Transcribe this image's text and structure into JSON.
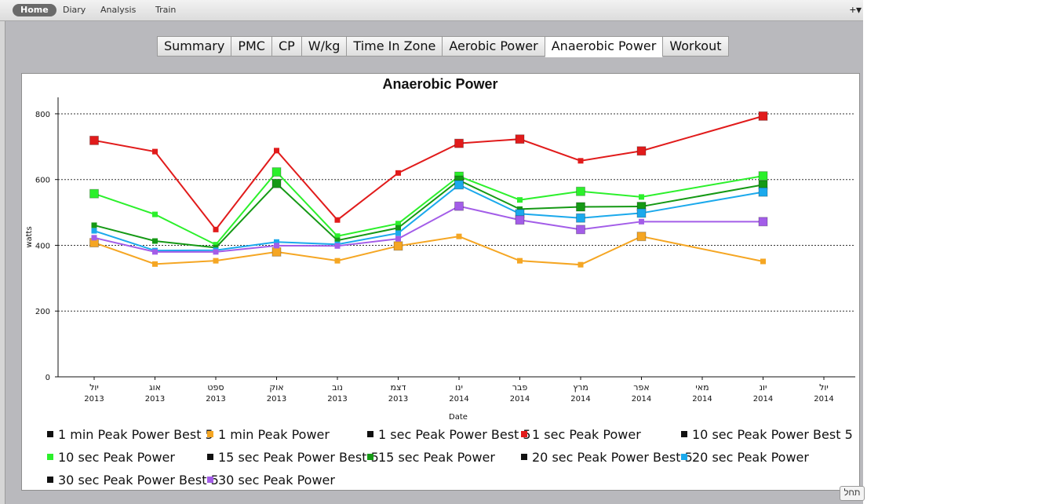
{
  "menu": {
    "items": [
      {
        "label": "Home",
        "active": true
      },
      {
        "label": "Diary",
        "active": false
      },
      {
        "label": "Analysis",
        "active": false
      },
      {
        "label": "Train",
        "active": false
      }
    ],
    "plus_label": "+▾"
  },
  "tabs": [
    {
      "label": "Summary",
      "selected": false
    },
    {
      "label": "PMC",
      "selected": false
    },
    {
      "label": "CP",
      "selected": false
    },
    {
      "label": "W/kg",
      "selected": false
    },
    {
      "label": "Time In Zone",
      "selected": false
    },
    {
      "label": "Aerobic Power",
      "selected": false
    },
    {
      "label": "Anaerobic Power",
      "selected": true
    },
    {
      "label": "Workout",
      "selected": false
    }
  ],
  "status_button_label": "תחל",
  "chart_data": {
    "type": "line",
    "title": "Anaerobic Power",
    "xlabel": "Date",
    "ylabel": "watts",
    "ylim": [
      0,
      850
    ],
    "yticks": [
      0,
      200,
      400,
      600,
      800
    ],
    "grid": "horizontal dotted",
    "legend_placement": "bottom",
    "categories": [
      {
        "month": "יול",
        "year": "2013"
      },
      {
        "month": "אוג",
        "year": "2013"
      },
      {
        "month": "ספט",
        "year": "2013"
      },
      {
        "month": "אוק",
        "year": "2013"
      },
      {
        "month": "נוב",
        "year": "2013"
      },
      {
        "month": "דצמ",
        "year": "2013"
      },
      {
        "month": "ינו",
        "year": "2014"
      },
      {
        "month": "פבר",
        "year": "2014"
      },
      {
        "month": "מרץ",
        "year": "2014"
      },
      {
        "month": "אפר",
        "year": "2014"
      },
      {
        "month": "מאי",
        "year": "2014"
      },
      {
        "month": "יונ",
        "year": "2014"
      },
      {
        "month": "יול",
        "year": "2014"
      }
    ],
    "series": [
      {
        "name": "1 min Peak Power",
        "color": "#f5a623",
        "big_markers": [
          0,
          3,
          5,
          9
        ],
        "values": [
          408,
          343,
          353,
          380,
          353,
          398,
          427,
          353,
          341,
          427,
          null,
          351,
          null
        ]
      },
      {
        "name": "1 sec Peak Power",
        "color": "#e11b1b",
        "big_markers": [
          0,
          6,
          7,
          9,
          11
        ],
        "values": [
          719,
          685,
          448,
          688,
          477,
          620,
          710,
          723,
          657,
          687,
          null,
          793,
          null
        ]
      },
      {
        "name": "10 sec Peak Power",
        "color": "#2cf02c",
        "big_markers": [
          0,
          3,
          6,
          8,
          11
        ],
        "values": [
          557,
          494,
          402,
          623,
          428,
          466,
          610,
          538,
          564,
          547,
          null,
          611,
          null
        ]
      },
      {
        "name": "15 sec Peak Power",
        "color": "#159915",
        "big_markers": [
          3,
          6,
          8,
          9,
          11
        ],
        "values": [
          461,
          413,
          393,
          588,
          415,
          453,
          598,
          510,
          517,
          518,
          null,
          584,
          null
        ]
      },
      {
        "name": "20 sec Peak Power",
        "color": "#1ba9ec",
        "big_markers": [
          6,
          7,
          8,
          9,
          11
        ],
        "values": [
          444,
          384,
          385,
          410,
          403,
          437,
          584,
          496,
          483,
          498,
          null,
          562,
          null
        ]
      },
      {
        "name": "30 sec Peak Power",
        "color": "#a35de8",
        "big_markers": [
          6,
          7,
          8,
          11
        ],
        "values": [
          423,
          380,
          380,
          399,
          398,
          420,
          519,
          477,
          448,
          472,
          null,
          472,
          null
        ]
      }
    ],
    "legend": [
      {
        "label": "1 min Peak Power Best 5",
        "color": "#111111"
      },
      {
        "label": "1 min Peak Power",
        "color": "#f5a623"
      },
      {
        "label": "1 sec Peak Power Best 5",
        "color": "#111111"
      },
      {
        "label": "1 sec Peak Power",
        "color": "#e11b1b"
      },
      {
        "label": "10 sec Peak Power Best 5",
        "color": "#111111"
      },
      {
        "label": "10 sec Peak Power",
        "color": "#2cf02c"
      },
      {
        "label": "15 sec Peak Power Best 5",
        "color": "#111111"
      },
      {
        "label": "15 sec Peak Power",
        "color": "#159915"
      },
      {
        "label": "20 sec Peak Power Best 5",
        "color": "#111111"
      },
      {
        "label": "20 sec Peak Power",
        "color": "#1ba9ec"
      },
      {
        "label": "30 sec Peak Power Best 5",
        "color": "#111111"
      },
      {
        "label": "30 sec Peak Power",
        "color": "#a35de8"
      }
    ]
  }
}
